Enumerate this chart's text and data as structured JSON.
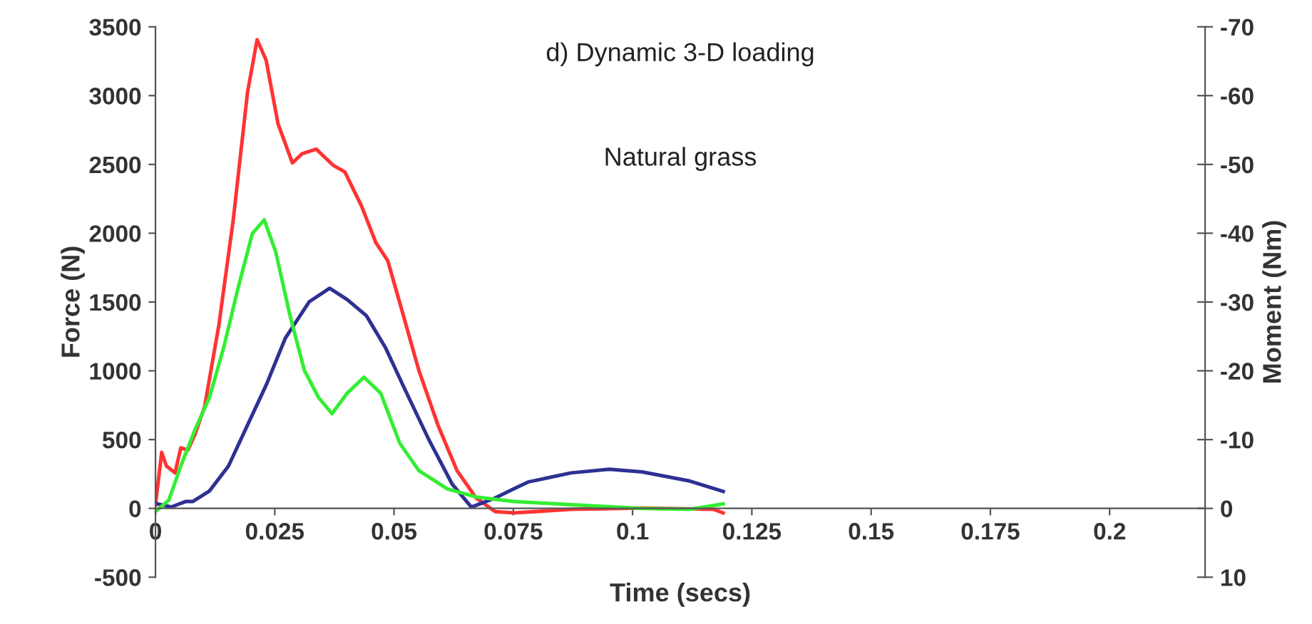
{
  "chart_data": {
    "type": "line",
    "title": "d) Dynamic 3-D loading",
    "subtitle": "Natural grass",
    "xlabel": "Time (secs)",
    "ylabel": "Force (N)",
    "y2label": "Moment (Nm)",
    "xlim": [
      0,
      0.22
    ],
    "xticks": [
      0,
      0.025,
      0.05,
      0.075,
      0.1,
      0.125,
      0.15,
      0.175,
      0.2
    ],
    "ylim": [
      -500,
      3500
    ],
    "yticks": [
      -500,
      0,
      500,
      1000,
      1500,
      2000,
      2500,
      3000,
      3500
    ],
    "y2lim": [
      10,
      -70
    ],
    "y2ticks": [
      10,
      0,
      -10,
      -20,
      -30,
      -40,
      -50,
      -60,
      -70
    ],
    "grid": false,
    "legend": false,
    "marker": "none",
    "line_style": "solid",
    "series": [
      {
        "color": "#ff3333",
        "x": [
          0,
          0.0013,
          0.0023,
          0.0041,
          0.0053,
          0.0068,
          0.0083,
          0.0103,
          0.0133,
          0.0163,
          0.0193,
          0.0213,
          0.0232,
          0.0257,
          0.0287,
          0.0307,
          0.0337,
          0.0372,
          0.0397,
          0.0432,
          0.0462,
          0.0487,
          0.0517,
          0.0552,
          0.0592,
          0.0632,
          0.0672,
          0.0712,
          0.0751,
          0.0871,
          0.102,
          0.117,
          0.119
        ],
        "values": [
          26,
          407,
          308,
          258,
          440,
          424,
          540,
          739,
          1335,
          2097,
          3025,
          3406,
          3257,
          2793,
          2511,
          2577,
          2611,
          2495,
          2445,
          2197,
          1931,
          1799,
          1434,
          1004,
          606,
          275,
          76,
          -23,
          -33,
          -7,
          2,
          -7,
          -33
        ]
      },
      {
        "color": "#2e3192",
        "x": [
          0,
          0.0033,
          0.0063,
          0.0078,
          0.0113,
          0.0153,
          0.0193,
          0.0233,
          0.0272,
          0.0322,
          0.0365,
          0.0402,
          0.0442,
          0.0482,
          0.0522,
          0.0572,
          0.0622,
          0.0662,
          0.0712,
          0.0751,
          0.0781,
          0.0871,
          0.0951,
          0.102,
          0.112,
          0.119
        ],
        "values": [
          36,
          10,
          50,
          50,
          126,
          308,
          606,
          904,
          1236,
          1501,
          1600,
          1517,
          1401,
          1169,
          871,
          507,
          176,
          10,
          76,
          142,
          192,
          258,
          285,
          265,
          199,
          123
        ]
      },
      {
        "color": "#33ee33",
        "x": [
          0,
          0.0028,
          0.0053,
          0.0083,
          0.0113,
          0.0143,
          0.0173,
          0.0203,
          0.0228,
          0.0252,
          0.0282,
          0.0312,
          0.0342,
          0.037,
          0.0402,
          0.0437,
          0.0472,
          0.0512,
          0.0552,
          0.0612,
          0.0672,
          0.0751,
          0.0871,
          0.102,
          0.112,
          0.119
        ],
        "values": [
          -23,
          60,
          308,
          573,
          805,
          1169,
          1600,
          1998,
          2097,
          1865,
          1401,
          1004,
          805,
          689,
          838,
          954,
          838,
          474,
          275,
          142,
          83,
          50,
          27,
          0,
          -7,
          33
        ]
      }
    ]
  }
}
